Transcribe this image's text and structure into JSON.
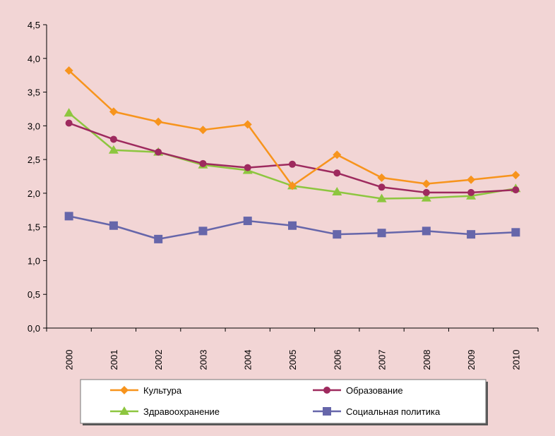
{
  "chart_data": {
    "type": "line",
    "x": [
      "2000",
      "2001",
      "2002",
      "2003",
      "2004",
      "2005",
      "2006",
      "2007",
      "2008",
      "2009",
      "2010"
    ],
    "y_ticks": [
      "0,0",
      "0,5",
      "1,0",
      "1,5",
      "2,0",
      "2,5",
      "3,0",
      "3,5",
      "4,0",
      "4,5"
    ],
    "ylim": [
      0,
      4.5
    ],
    "y_step": 0.5,
    "grid": false,
    "title": "",
    "xlabel": "",
    "ylabel": "",
    "legend_position": "bottom",
    "series": [
      {
        "name": "Культура",
        "color": "#f7941d",
        "marker": "diamond",
        "values": [
          3.82,
          3.21,
          3.06,
          2.94,
          3.02,
          2.11,
          2.57,
          2.23,
          2.14,
          2.2,
          2.27
        ]
      },
      {
        "name": "Образование",
        "color": "#9e2a5e",
        "marker": "circle",
        "values": [
          3.04,
          2.8,
          2.61,
          2.44,
          2.38,
          2.43,
          2.3,
          2.09,
          2.01,
          2.01,
          2.05
        ]
      },
      {
        "name": "Здравоохранение",
        "color": "#8dc63f",
        "marker": "triangle",
        "values": [
          3.19,
          2.64,
          2.61,
          2.42,
          2.34,
          2.11,
          2.02,
          1.92,
          1.93,
          1.96,
          2.07
        ]
      },
      {
        "name": "Социальная политика",
        "color": "#6666aa",
        "marker": "square",
        "values": [
          1.66,
          1.52,
          1.32,
          1.44,
          1.59,
          1.52,
          1.39,
          1.41,
          1.44,
          1.39,
          1.42
        ]
      }
    ]
  }
}
